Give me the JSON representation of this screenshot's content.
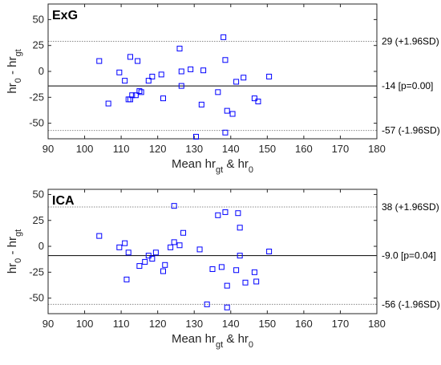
{
  "chart_data": [
    {
      "type": "scatter",
      "title": "ExG",
      "xlabel": "Mean hr_gt & hr_0",
      "ylabel": "hr_0 - hr_gt",
      "xlim": [
        90,
        180
      ],
      "ylim": [
        -65,
        65
      ],
      "xticks": [
        90,
        100,
        110,
        120,
        130,
        140,
        150,
        160,
        170,
        180
      ],
      "yticks": [
        -50,
        -25,
        0,
        25,
        50
      ],
      "points": [
        {
          "x": 104,
          "y": 10
        },
        {
          "x": 106.5,
          "y": -31
        },
        {
          "x": 109.5,
          "y": -1
        },
        {
          "x": 111,
          "y": -9
        },
        {
          "x": 112,
          "y": -27
        },
        {
          "x": 112.5,
          "y": 14
        },
        {
          "x": 112.5,
          "y": -27
        },
        {
          "x": 113,
          "y": -23
        },
        {
          "x": 114,
          "y": -23
        },
        {
          "x": 114.5,
          "y": 10
        },
        {
          "x": 115,
          "y": -19
        },
        {
          "x": 115.5,
          "y": -20
        },
        {
          "x": 117.5,
          "y": -9
        },
        {
          "x": 118.5,
          "y": -5
        },
        {
          "x": 121,
          "y": -3
        },
        {
          "x": 121.5,
          "y": -26
        },
        {
          "x": 126,
          "y": 22
        },
        {
          "x": 126.5,
          "y": 0
        },
        {
          "x": 126.5,
          "y": -14
        },
        {
          "x": 129,
          "y": 2
        },
        {
          "x": 130.5,
          "y": -63
        },
        {
          "x": 132,
          "y": -32
        },
        {
          "x": 132.5,
          "y": 1
        },
        {
          "x": 136.5,
          "y": -20
        },
        {
          "x": 138,
          "y": 33
        },
        {
          "x": 138.5,
          "y": 11
        },
        {
          "x": 138.5,
          "y": -59
        },
        {
          "x": 139,
          "y": -38
        },
        {
          "x": 140.5,
          "y": -41
        },
        {
          "x": 141.5,
          "y": -10
        },
        {
          "x": 143.5,
          "y": -6
        },
        {
          "x": 146.5,
          "y": -26
        },
        {
          "x": 147.5,
          "y": -29
        },
        {
          "x": 150.5,
          "y": -5
        }
      ],
      "reference_lines": [
        {
          "y": 29,
          "label": "29 (+1.96SD)",
          "style": "dotted"
        },
        {
          "y": -14,
          "label": "-14 [p=0.00]",
          "style": "solid"
        },
        {
          "y": -57,
          "label": "-57 (-1.96SD)",
          "style": "dotted"
        }
      ],
      "grid": false,
      "marker": "square",
      "marker_color": "#0000ff"
    },
    {
      "type": "scatter",
      "title": "ICA",
      "xlabel": "Mean hr_gt & hr_0",
      "ylabel": "hr_0 - hr_gt",
      "xlim": [
        90,
        180
      ],
      "ylim": [
        -65,
        55
      ],
      "xticks": [
        90,
        100,
        110,
        120,
        130,
        140,
        150,
        160,
        170,
        180
      ],
      "yticks": [
        -50,
        -25,
        0,
        25,
        50
      ],
      "points": [
        {
          "x": 104,
          "y": 10
        },
        {
          "x": 109.5,
          "y": -1
        },
        {
          "x": 111,
          "y": 3
        },
        {
          "x": 111.5,
          "y": -32
        },
        {
          "x": 112,
          "y": -6
        },
        {
          "x": 115,
          "y": -19
        },
        {
          "x": 116.5,
          "y": -15
        },
        {
          "x": 117.5,
          "y": -9
        },
        {
          "x": 118.5,
          "y": -12
        },
        {
          "x": 119.5,
          "y": -6
        },
        {
          "x": 121.5,
          "y": -24
        },
        {
          "x": 122,
          "y": -18
        },
        {
          "x": 123.5,
          "y": -1
        },
        {
          "x": 124.5,
          "y": 4
        },
        {
          "x": 124.5,
          "y": 39
        },
        {
          "x": 126,
          "y": 1
        },
        {
          "x": 127,
          "y": 13
        },
        {
          "x": 131.5,
          "y": -3
        },
        {
          "x": 133.5,
          "y": -56
        },
        {
          "x": 135,
          "y": -22
        },
        {
          "x": 136.5,
          "y": 30
        },
        {
          "x": 137.5,
          "y": -20
        },
        {
          "x": 138.5,
          "y": 33
        },
        {
          "x": 139,
          "y": -38
        },
        {
          "x": 139,
          "y": -59
        },
        {
          "x": 141.5,
          "y": -23
        },
        {
          "x": 142,
          "y": 32
        },
        {
          "x": 142.5,
          "y": 18
        },
        {
          "x": 142.5,
          "y": -9
        },
        {
          "x": 144,
          "y": -35
        },
        {
          "x": 146.5,
          "y": -25
        },
        {
          "x": 147,
          "y": -34
        },
        {
          "x": 150.5,
          "y": -5
        }
      ],
      "reference_lines": [
        {
          "y": 38,
          "label": "38 (+1.96SD)",
          "style": "dotted"
        },
        {
          "y": -9,
          "label": "-9.0 [p=0.04]",
          "style": "solid"
        },
        {
          "y": -56,
          "label": "-56 (-1.96SD)",
          "style": "dotted"
        }
      ],
      "grid": false,
      "marker": "square",
      "marker_color": "#0000ff"
    }
  ]
}
